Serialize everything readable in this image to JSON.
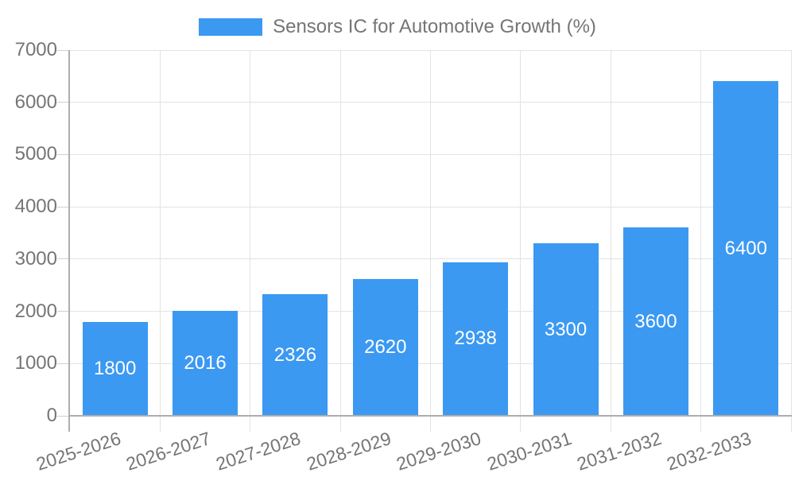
{
  "legend": {
    "label": "Sensors IC for Automotive Growth (%)"
  },
  "chart_data": {
    "type": "bar",
    "title": "Sensors IC for Automotive Growth (%)",
    "categories": [
      "2025-2026",
      "2026-2027",
      "2027-2028",
      "2028-2029",
      "2029-2030",
      "2030-2031",
      "2031-2032",
      "2032-2033"
    ],
    "values": [
      1800,
      2016,
      2326,
      2620,
      2938,
      3300,
      3600,
      6400
    ],
    "value_labels": [
      "1800",
      "2016",
      "2326",
      "2620",
      "2938",
      "3300",
      "3600",
      "6400"
    ],
    "ytick_labels": [
      "0",
      "1000",
      "2000",
      "3000",
      "4000",
      "5000",
      "6000",
      "7000"
    ],
    "yticks": [
      0,
      1000,
      2000,
      3000,
      4000,
      5000,
      6000,
      7000
    ],
    "ylim": [
      0,
      7000
    ],
    "xlabel": "",
    "ylabel": "",
    "grid": true,
    "legend_position": "top-center",
    "colors": {
      "bar": "#3B99F2",
      "bar_value_text": "#FFFFFF",
      "axis_text": "#757575",
      "gridline": "#E3E3E3",
      "tick": "#CFCFCF",
      "axis_line": "#ADADAD"
    }
  }
}
